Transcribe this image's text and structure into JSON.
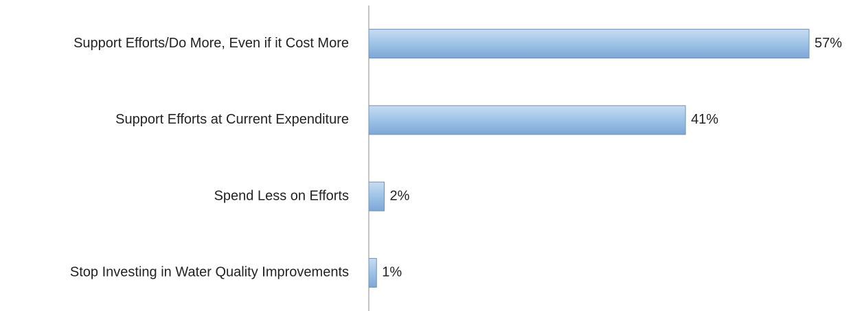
{
  "chart_data": {
    "type": "bar",
    "orientation": "horizontal",
    "categories": [
      "Support Efforts/Do More, Even if it Cost More",
      "Support Efforts at Current Expenditure",
      "Spend Less on Efforts",
      "Stop Investing in Water Quality Improvements"
    ],
    "values": [
      57,
      41,
      2,
      1
    ],
    "value_labels": [
      "57%",
      "41%",
      "2%",
      "1%"
    ],
    "color": "#9dc3e6"
  }
}
